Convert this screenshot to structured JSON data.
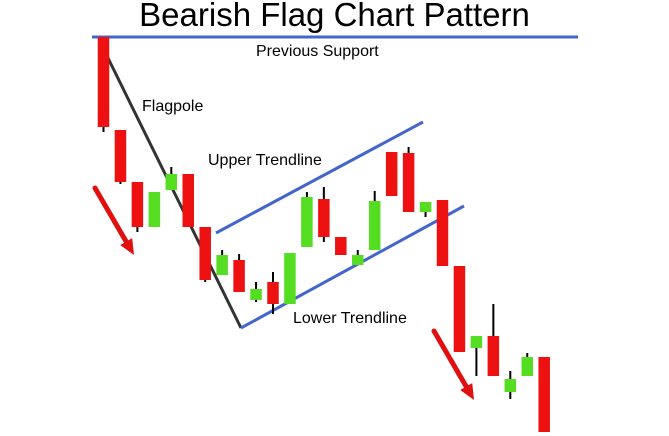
{
  "chart_data": {
    "type": "candlestick",
    "title": "Bearish Flag Chart Pattern",
    "price_axis": "not shown",
    "grid": false,
    "legend": "none",
    "colors": {
      "bearish": "#ee1111",
      "bullish": "#55dd22",
      "trendline": "#4466cc",
      "flagpole_line": "#333333",
      "arrow": "#e01010",
      "wick": "#000000"
    },
    "annotations": [
      {
        "text": "Previous Support",
        "kind": "horizontal-line"
      },
      {
        "text": "Flagpole",
        "kind": "label"
      },
      {
        "text": "Upper Trendline",
        "kind": "trendline"
      },
      {
        "text": "Lower Trendline",
        "kind": "trendline"
      }
    ],
    "arrows": [
      {
        "direction": "down"
      },
      {
        "direction": "down"
      }
    ],
    "series": [
      {
        "open": 395,
        "close": 305,
        "high": 395,
        "low": 300
      },
      {
        "open": 302,
        "close": 250,
        "high": 302,
        "low": 248
      },
      {
        "open": 250,
        "close": 205,
        "high": 250,
        "low": 200
      },
      {
        "open": 205,
        "close": 240,
        "high": 240,
        "low": 205
      },
      {
        "open": 242,
        "close": 258,
        "high": 265,
        "low": 242
      },
      {
        "open": 258,
        "close": 205,
        "high": 258,
        "low": 205
      },
      {
        "open": 205,
        "close": 152,
        "high": 205,
        "low": 150
      },
      {
        "open": 157,
        "close": 177,
        "high": 182,
        "low": 157
      },
      {
        "open": 172,
        "close": 140,
        "high": 178,
        "low": 140
      },
      {
        "open": 132,
        "close": 143,
        "high": 150,
        "low": 130
      },
      {
        "open": 150,
        "close": 128,
        "high": 160,
        "low": 118
      },
      {
        "open": 128,
        "close": 179,
        "high": 179,
        "low": 128
      },
      {
        "open": 185,
        "close": 235,
        "high": 240,
        "low": 185
      },
      {
        "open": 233,
        "close": 195,
        "high": 245,
        "low": 190
      },
      {
        "open": 195,
        "close": 177,
        "high": 195,
        "low": 177
      },
      {
        "open": 167,
        "close": 177,
        "high": 182,
        "low": 167
      },
      {
        "open": 182,
        "close": 231,
        "high": 241,
        "low": 182
      },
      {
        "open": 280,
        "close": 236,
        "high": 280,
        "low": 236
      },
      {
        "open": 279,
        "close": 220,
        "high": 285,
        "low": 220
      },
      {
        "open": 220,
        "close": 230,
        "high": 230,
        "low": 215
      },
      {
        "open": 232,
        "close": 166,
        "high": 232,
        "low": 166
      },
      {
        "open": 166,
        "close": 80,
        "high": 166,
        "low": 80
      },
      {
        "open": 84,
        "close": 96,
        "high": 96,
        "low": 56
      },
      {
        "open": 96,
        "close": 56,
        "high": 128,
        "low": 56
      },
      {
        "open": 40,
        "close": 53,
        "high": 61,
        "low": 33
      },
      {
        "open": 56,
        "close": 75,
        "high": 79,
        "low": 56
      },
      {
        "open": 75,
        "close": 0,
        "high": 75,
        "low": 0
      }
    ]
  }
}
